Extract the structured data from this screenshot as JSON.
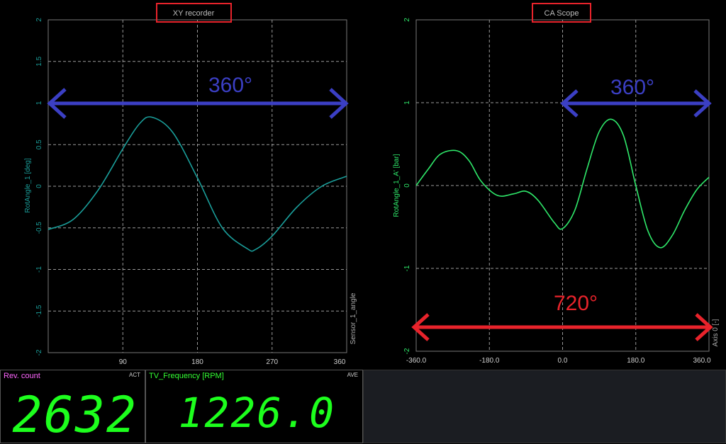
{
  "xy": {
    "title": "XY recorder",
    "ylabel": "RotAngle_1 [deg]",
    "xlabel": "Sensor_1_angle",
    "yticks": [
      "2",
      "1.5",
      "1",
      "0.5",
      "0",
      "-0.5",
      "-1",
      "-1.5",
      "-2"
    ],
    "xticks": [
      "90",
      "180",
      "270",
      "360"
    ],
    "curve_color": "#1a9e9a"
  },
  "ca": {
    "title": "CA Scope",
    "ylabel": "RotAngle_1_A' [bar]",
    "xlabel": "Axis 0 [-]",
    "yticks": [
      "2",
      "1",
      "0",
      "-1",
      "-2"
    ],
    "xticks": [
      "-360.0",
      "-180.0",
      "0.0",
      "180.0",
      "360.0"
    ],
    "curve_color": "#2fe86a"
  },
  "annotations": {
    "xy_span": "360°",
    "ca_span": "360°",
    "ca_full_span": "720°",
    "blue": "#3b3fc4",
    "red": "#e8232b"
  },
  "rev": {
    "title": "Rev. count",
    "mode": "ACT",
    "value": "2632",
    "title_color": "#ff66ff"
  },
  "tv": {
    "title": "TV_Frequency [RPM]",
    "mode": "AVE",
    "value": "1226.0",
    "title_color": "#33ff33"
  },
  "chart_data": [
    {
      "type": "line",
      "title": "XY recorder",
      "xlabel": "Sensor_1_angle",
      "ylabel": "RotAngle_1 [deg]",
      "xlim": [
        0,
        360
      ],
      "ylim": [
        -2,
        2
      ],
      "grid": true,
      "series": [
        {
          "x": [
            0,
            30,
            60,
            90,
            110,
            125,
            150,
            180,
            210,
            240,
            250,
            270,
            300,
            330,
            360
          ],
          "y": [
            -0.52,
            -0.4,
            -0.05,
            0.45,
            0.75,
            0.83,
            0.65,
            0.1,
            -0.5,
            -0.75,
            -0.76,
            -0.6,
            -0.25,
            0.0,
            0.12
          ]
        }
      ]
    },
    {
      "type": "line",
      "title": "CA Scope",
      "xlabel": "Axis 0 [-]",
      "ylabel": "RotAngle_1_A' [bar]",
      "xlim": [
        -360,
        360
      ],
      "ylim": [
        -2,
        2
      ],
      "grid": true,
      "series": [
        {
          "x": [
            -360,
            -330,
            -300,
            -260,
            -230,
            -200,
            -160,
            -120,
            -90,
            -60,
            -20,
            0,
            30,
            60,
            90,
            120,
            150,
            180,
            210,
            240,
            270,
            300,
            330,
            360
          ],
          "y": [
            0.0,
            0.2,
            0.38,
            0.42,
            0.3,
            0.05,
            -0.12,
            -0.1,
            -0.07,
            -0.18,
            -0.45,
            -0.52,
            -0.3,
            0.2,
            0.65,
            0.8,
            0.6,
            0.0,
            -0.55,
            -0.75,
            -0.6,
            -0.3,
            -0.05,
            0.1
          ]
        }
      ]
    }
  ]
}
